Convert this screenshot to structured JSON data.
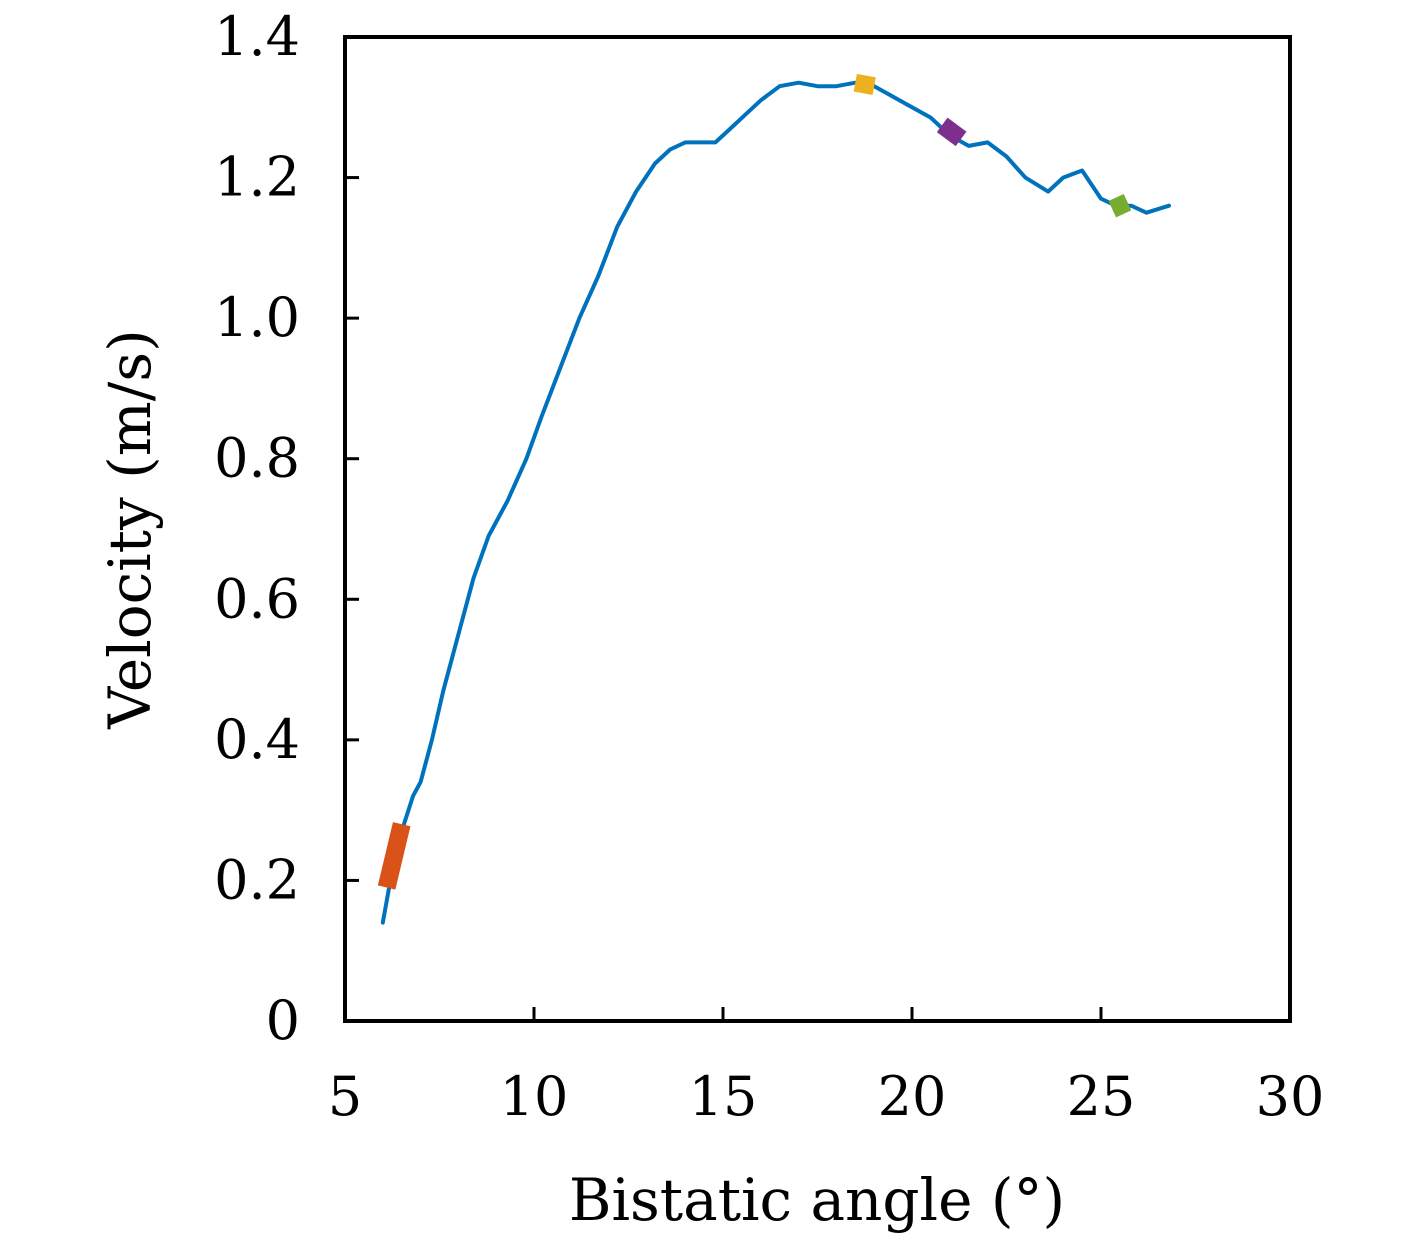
{
  "chart_data": {
    "type": "line",
    "title": "",
    "xlabel": "Bistatic angle (°)",
    "ylabel": "Velocity (m/s)",
    "xlim": [
      5,
      30
    ],
    "ylim": [
      0,
      1.4
    ],
    "xticks": [
      5,
      10,
      15,
      20,
      25,
      30
    ],
    "xtick_labels": [
      "5",
      "10",
      "15",
      "20",
      "25",
      "30"
    ],
    "yticks": [
      0,
      0.2,
      0.4,
      0.6,
      0.8,
      1.0,
      1.2,
      1.4
    ],
    "ytick_labels": [
      "0",
      "0.2",
      "0.4",
      "0.6",
      "0.8",
      "1.0",
      "1.2",
      "1.4"
    ],
    "grid": false,
    "legend": "none",
    "series": [
      {
        "color": "#0072BD",
        "x": [
          6.0,
          6.2,
          6.5,
          6.8,
          7.0,
          7.3,
          7.6,
          8.0,
          8.4,
          8.8,
          9.3,
          9.8,
          10.2,
          10.7,
          11.2,
          11.7,
          12.2,
          12.7,
          13.2,
          13.6,
          14.0,
          14.4,
          14.8,
          15.2,
          15.6,
          16.0,
          16.5,
          17.0,
          17.5,
          18.0,
          18.5,
          19.0,
          19.5,
          20.0,
          20.5,
          21.0,
          21.5,
          22.0,
          22.5,
          23.0,
          23.6,
          24.0,
          24.5,
          25.0,
          25.4,
          25.8,
          26.2,
          26.5,
          26.8
        ],
        "y": [
          0.14,
          0.2,
          0.27,
          0.32,
          0.34,
          0.4,
          0.47,
          0.55,
          0.63,
          0.69,
          0.74,
          0.8,
          0.86,
          0.93,
          1.0,
          1.06,
          1.13,
          1.18,
          1.22,
          1.24,
          1.25,
          1.25,
          1.25,
          1.27,
          1.29,
          1.31,
          1.33,
          1.335,
          1.33,
          1.33,
          1.335,
          1.33,
          1.315,
          1.3,
          1.285,
          1.26,
          1.245,
          1.25,
          1.23,
          1.2,
          1.18,
          1.2,
          1.21,
          1.17,
          1.16,
          1.16,
          1.15,
          1.155,
          1.16
        ]
      }
    ],
    "highlights": [
      {
        "color": "#D95319",
        "x": [
          6.1,
          6.5
        ],
        "y": [
          0.19,
          0.28
        ]
      },
      {
        "color": "#EDB120",
        "x": [
          18.5,
          19.0
        ],
        "y": [
          1.335,
          1.33
        ]
      },
      {
        "color": "#7E2F8E",
        "x": [
          20.8,
          21.3
        ],
        "y": [
          1.275,
          1.255
        ]
      },
      {
        "color": "#77AC30",
        "x": [
          25.3,
          25.7
        ],
        "y": [
          1.155,
          1.165
        ]
      }
    ]
  }
}
